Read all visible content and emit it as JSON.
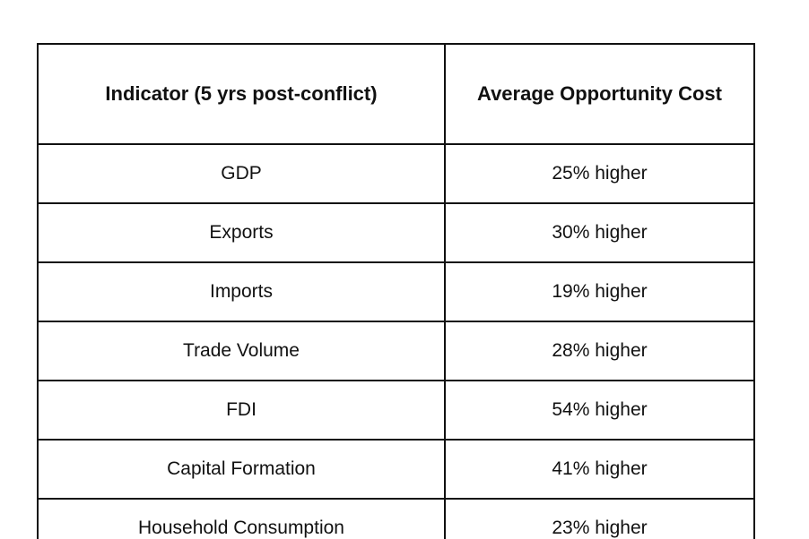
{
  "colors": {
    "background": "#ffffff",
    "border": "#111111",
    "text": "#111111"
  },
  "table": {
    "headers": [
      "Indicator (5 yrs post-conflict)",
      "Average Opportunity Cost"
    ],
    "rows": [
      {
        "indicator": "GDP",
        "cost": "25% higher"
      },
      {
        "indicator": "Exports",
        "cost": "30% higher"
      },
      {
        "indicator": "Imports",
        "cost": "19% higher"
      },
      {
        "indicator": "Trade Volume",
        "cost": "28% higher"
      },
      {
        "indicator": "FDI",
        "cost": "54% higher"
      },
      {
        "indicator": "Capital Formation",
        "cost": "41% higher"
      },
      {
        "indicator": "Household Consumption",
        "cost": "23% higher"
      }
    ]
  },
  "chart_data": {
    "type": "table",
    "title": "",
    "columns": [
      "Indicator (5 yrs post-conflict)",
      "Average Opportunity Cost"
    ],
    "categories": [
      "GDP",
      "Exports",
      "Imports",
      "Trade Volume",
      "FDI",
      "Capital Formation",
      "Household Consumption"
    ],
    "values_percent_higher": [
      25,
      30,
      19,
      28,
      54,
      41,
      23
    ],
    "value_labels": [
      "25% higher",
      "30% higher",
      "19% higher",
      "28% higher",
      "54% higher",
      "41% higher",
      "23% higher"
    ]
  }
}
